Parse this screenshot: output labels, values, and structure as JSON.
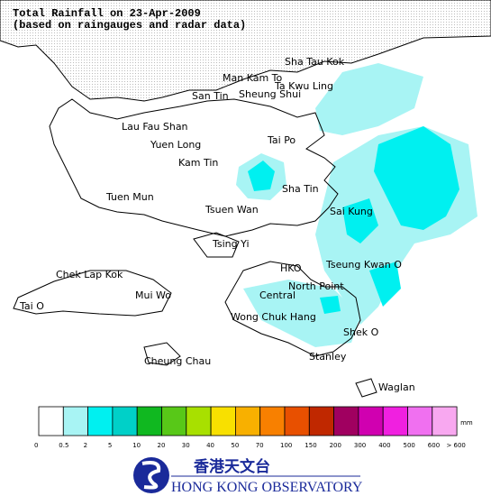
{
  "header": {
    "title": "Total Rainfall on 23-Apr-2009",
    "subtitle": "(based on raingauges and radar data)"
  },
  "places": [
    {
      "label": "Sha Tau Kok"
    },
    {
      "label": "Man Kam To"
    },
    {
      "label": "Ta Kwu Ling"
    },
    {
      "label": "San Tin"
    },
    {
      "label": "Sheung Shui"
    },
    {
      "label": "Lau Fau Shan"
    },
    {
      "label": "Yuen Long"
    },
    {
      "label": "Tai Po"
    },
    {
      "label": "Kam Tin"
    },
    {
      "label": "Sha Tin"
    },
    {
      "label": "Tuen Mun"
    },
    {
      "label": "Tsuen Wan"
    },
    {
      "label": "Sai Kung"
    },
    {
      "label": "Tsing Yi"
    },
    {
      "label": "HKO"
    },
    {
      "label": "Tseung Kwan O"
    },
    {
      "label": "Chek Lap Kok"
    },
    {
      "label": "North Point"
    },
    {
      "label": "Central"
    },
    {
      "label": "Mui Wo"
    },
    {
      "label": "Tai O"
    },
    {
      "label": "Wong Chuk Hang"
    },
    {
      "label": "Shek O"
    },
    {
      "label": "Stanley"
    },
    {
      "label": "Cheung Chau"
    },
    {
      "label": "Waglan"
    }
  ],
  "legend": {
    "unit": "mm",
    "labels": [
      "0",
      "0.5",
      "2",
      "5",
      "10",
      "20",
      "30",
      "40",
      "50",
      "70",
      "100",
      "150",
      "200",
      "300",
      "400",
      "500",
      "600",
      "> 600"
    ],
    "colors": [
      "#ffffff",
      "#a8f4f4",
      "#00f0f0",
      "#00d0c8",
      "#10b820",
      "#58c818",
      "#a8e000",
      "#f8e000",
      "#f8b000",
      "#f88000",
      "#e85000",
      "#c02800",
      "#a00060",
      "#d000b0",
      "#f020e0",
      "#f070f0",
      "#f8a8f0"
    ]
  },
  "logo": {
    "chinese": "香港天文台",
    "english": "HONG KONG OBSERVATORY"
  }
}
